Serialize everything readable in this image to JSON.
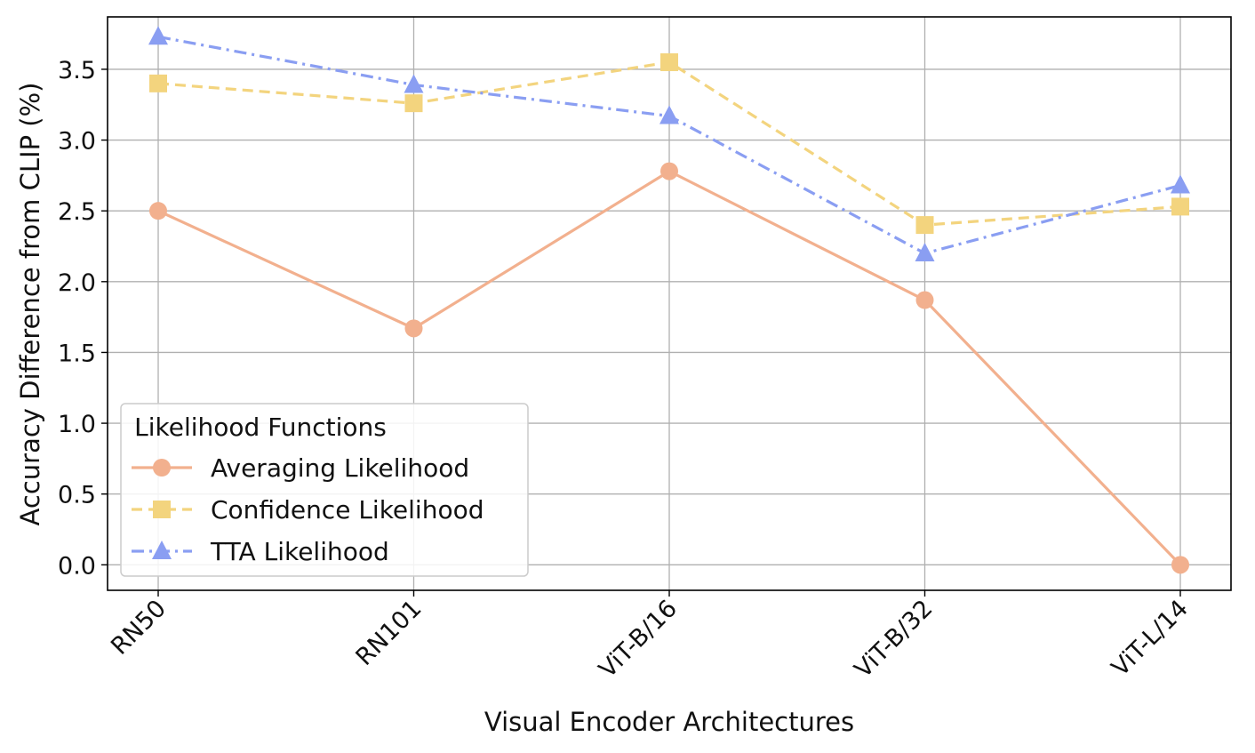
{
  "chart_data": {
    "type": "line",
    "title": "",
    "xlabel": "Visual Encoder Architectures",
    "ylabel": "Accuracy Difference from CLIP (%)",
    "categories": [
      "RN50",
      "RN101",
      "ViT-B/16",
      "ViT-B/32",
      "ViT-L/14"
    ],
    "ylim": [
      -0.18,
      3.87
    ],
    "yticks": [
      0.0,
      0.5,
      1.0,
      1.5,
      2.0,
      2.5,
      3.0,
      3.5
    ],
    "ytick_labels": [
      "0.0",
      "0.5",
      "1.0",
      "1.5",
      "2.0",
      "2.5",
      "3.0",
      "3.5"
    ],
    "grid": true,
    "legend": {
      "title": "Likelihood Functions",
      "placement": "lower-left"
    },
    "series": [
      {
        "name": "Averaging Likelihood",
        "values": [
          2.5,
          1.67,
          2.78,
          1.87,
          0.0
        ],
        "color": "#F2B08E",
        "marker": "circle",
        "linestyle": "solid"
      },
      {
        "name": "Confidence Likelihood",
        "values": [
          3.4,
          3.26,
          3.55,
          2.4,
          2.53
        ],
        "color": "#F3D47E",
        "marker": "square",
        "linestyle": "dashed"
      },
      {
        "name": "TTA Likelihood",
        "values": [
          3.73,
          3.39,
          3.17,
          2.2,
          2.68
        ],
        "color": "#8A9EF2",
        "marker": "triangle",
        "linestyle": "dashdot"
      }
    ]
  }
}
